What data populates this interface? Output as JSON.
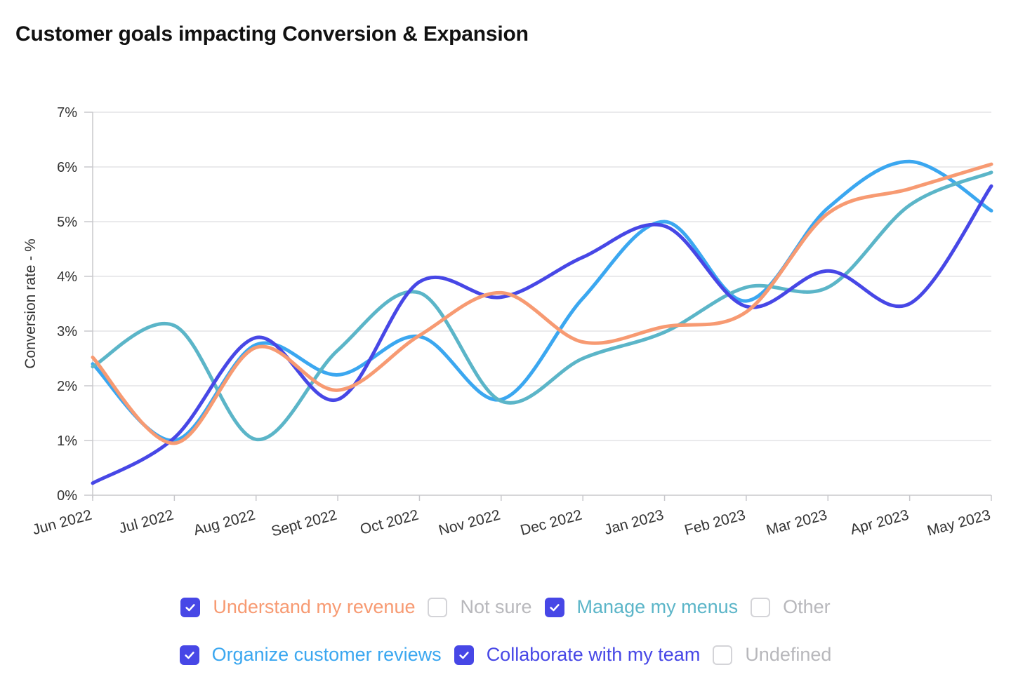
{
  "title": "Customer goals impacting Conversion & Expansion",
  "chart_data": {
    "type": "line",
    "title": "Customer goals impacting Conversion & Expansion",
    "xlabel": "",
    "ylabel": "Conversion rate - %",
    "ylim": [
      0,
      7
    ],
    "y_ticks": [
      "0%",
      "1%",
      "2%",
      "3%",
      "4%",
      "5%",
      "6%",
      "7%"
    ],
    "grid": true,
    "categories": [
      "Jun 2022",
      "Jul 2022",
      "Aug 2022",
      "Sept 2022",
      "Oct 2022",
      "Nov 2022",
      "Dec 2022",
      "Jan 2023",
      "Feb 2023",
      "Mar 2023",
      "Apr 2023",
      "May 2023"
    ],
    "series": [
      {
        "name": "Organize customer reviews",
        "color": "#3ba7f0",
        "values": [
          2.4,
          1.0,
          2.75,
          2.2,
          2.9,
          1.75,
          3.6,
          5.0,
          3.55,
          5.25,
          6.1,
          5.2
        ]
      },
      {
        "name": "Manage my menus",
        "color": "#5bb5c8",
        "values": [
          2.35,
          3.1,
          1.02,
          2.65,
          3.7,
          1.72,
          2.5,
          2.98,
          3.8,
          3.8,
          5.3,
          5.9
        ]
      },
      {
        "name": "Collaborate with my team",
        "color": "#4747e6",
        "values": [
          0.22,
          1.05,
          2.88,
          1.75,
          3.9,
          3.62,
          4.35,
          4.92,
          3.45,
          4.1,
          3.5,
          5.65
        ]
      },
      {
        "name": "Understand my revenue",
        "color": "#f79a72",
        "values": [
          2.52,
          0.95,
          2.7,
          1.92,
          2.92,
          3.7,
          2.8,
          3.08,
          3.35,
          5.15,
          5.6,
          6.05
        ]
      }
    ],
    "legend_position": "bottom"
  },
  "legend": {
    "row1": [
      {
        "label": "Understand my revenue",
        "checked": true,
        "color": "#f79a72"
      },
      {
        "label": "Not sure",
        "checked": false,
        "color": "#b8b8bc"
      },
      {
        "label": "Manage my menus",
        "checked": true,
        "color": "#5bb5c8"
      },
      {
        "label": "Other",
        "checked": false,
        "color": "#b8b8bc"
      }
    ],
    "row2": [
      {
        "label": "Organize customer reviews",
        "checked": true,
        "color": "#3ba7f0"
      },
      {
        "label": "Collaborate with my team",
        "checked": true,
        "color": "#4747e6"
      },
      {
        "label": "Undefined",
        "checked": false,
        "color": "#b8b8bc"
      }
    ]
  }
}
